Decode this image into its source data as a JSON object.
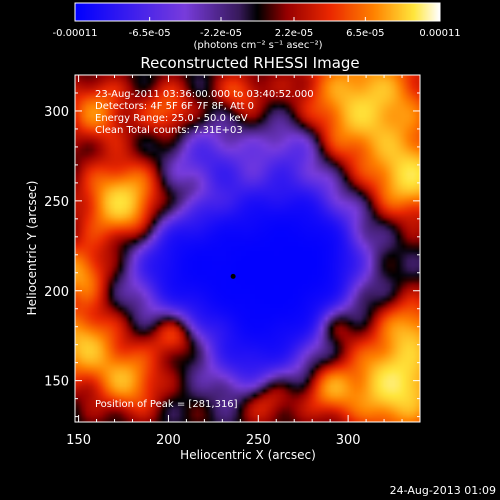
{
  "chart_data": {
    "type": "heatmap",
    "title": "Reconstructed RHESSI Image",
    "xlabel": "Heliocentric X (arcsec)",
    "ylabel": "Heliocentric Y (arcsec)",
    "xlim": [
      148,
      340
    ],
    "ylim": [
      127,
      320
    ],
    "x_ticks": [
      150,
      200,
      250,
      300
    ],
    "y_ticks": [
      150,
      200,
      250,
      300
    ],
    "x_tick_labels": [
      "150",
      "200",
      "250",
      "300"
    ],
    "y_tick_labels": [
      "150",
      "200",
      "250",
      "300"
    ],
    "colorbar": {
      "range": [
        -0.00011,
        0.00011
      ],
      "ticks": [
        -0.00011,
        -6.5e-05,
        -2.2e-05,
        2.2e-05,
        6.5e-05,
        0.00011
      ],
      "tick_labels": [
        "-0.00011",
        "-6.5e-05",
        "-2.2e-05",
        "2.2e-05",
        "6.5e-05",
        "0.00011"
      ],
      "unit_label": "(photons cm⁻² s⁻¹ asec⁻²)"
    },
    "info_lines": [
      "23-Aug-2011 03:36:00.000 to 03:40:52.000",
      "Detectors: 4F 5F 6F 7F 8F, Att 0",
      "Energy Range: 25.0 - 50.0 keV",
      "Clean    Total counts: 7.31E+03"
    ],
    "peak_text": "Position of Peak = [281,316]",
    "marker": {
      "x": 236,
      "y": 208
    },
    "blobs": [
      {
        "x": 310,
        "y": 302,
        "a": 1.6,
        "s": 24
      },
      {
        "x": 335,
        "y": 262,
        "a": 1.5,
        "s": 14
      },
      {
        "x": 175,
        "y": 249,
        "a": 1.7,
        "s": 15
      },
      {
        "x": 160,
        "y": 300,
        "a": 1.0,
        "s": 12
      },
      {
        "x": 150,
        "y": 210,
        "a": 1.2,
        "s": 11
      },
      {
        "x": 152,
        "y": 170,
        "a": 1.4,
        "s": 14
      },
      {
        "x": 178,
        "y": 150,
        "a": 1.2,
        "s": 12
      },
      {
        "x": 327,
        "y": 148,
        "a": 1.9,
        "s": 18
      },
      {
        "x": 335,
        "y": 180,
        "a": 1.0,
        "s": 11
      },
      {
        "x": 290,
        "y": 145,
        "a": 1.0,
        "s": 10
      },
      {
        "x": 255,
        "y": 140,
        "a": 0.8,
        "s": 10
      },
      {
        "x": 200,
        "y": 300,
        "a": 0.9,
        "s": 10
      },
      {
        "x": 240,
        "y": 310,
        "a": 0.7,
        "s": 9
      },
      {
        "x": 203,
        "y": 175,
        "a": 1.0,
        "s": 9
      },
      {
        "x": 215,
        "y": 255,
        "a": 0.5,
        "s": 8
      },
      {
        "x": 292,
        "y": 180,
        "a": 0.7,
        "s": 9
      },
      {
        "x": 238,
        "y": 210,
        "a": -2.4,
        "s": 24
      },
      {
        "x": 270,
        "y": 235,
        "a": -1.8,
        "s": 22
      },
      {
        "x": 205,
        "y": 215,
        "a": -1.5,
        "s": 18
      },
      {
        "x": 265,
        "y": 190,
        "a": -1.8,
        "s": 20
      },
      {
        "x": 285,
        "y": 215,
        "a": -1.3,
        "s": 15
      },
      {
        "x": 222,
        "y": 270,
        "a": -1.0,
        "s": 16
      },
      {
        "x": 245,
        "y": 160,
        "a": -1.0,
        "s": 15
      },
      {
        "x": 270,
        "y": 280,
        "a": -0.8,
        "s": 13
      }
    ]
  },
  "footer": {
    "timestamp": "24-Aug-2013 01:09"
  },
  "colors": {
    "background": "#000000",
    "text": "#ffffff",
    "marker": "#000000"
  }
}
